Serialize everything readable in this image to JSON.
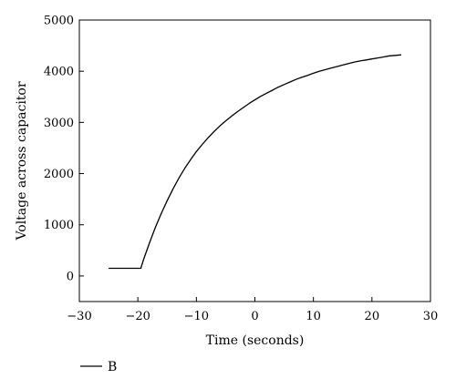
{
  "chart_data": {
    "type": "line",
    "title": "",
    "xlabel": "Time (seconds)",
    "ylabel": "Voltage across capacitor",
    "xlim": [
      -30,
      30
    ],
    "ylim": [
      -500,
      5000
    ],
    "x_ticks": [
      -30,
      -20,
      -10,
      0,
      10,
      20,
      30
    ],
    "x_tick_labels": [
      "−30",
      "−20",
      "−10",
      "0",
      "10",
      "20",
      "30"
    ],
    "y_ticks": [
      0,
      1000,
      2000,
      3000,
      4000,
      5000
    ],
    "y_tick_labels": [
      "0",
      "1000",
      "2000",
      "3000",
      "4000",
      "5000"
    ],
    "grid": false,
    "legend_position": "bottom-left",
    "series": [
      {
        "name": "B",
        "color": "#000000",
        "x": [
          -25,
          -24,
          -23,
          -22,
          -21,
          -20,
          -19.5,
          -19,
          -18,
          -17,
          -16,
          -15,
          -14,
          -13,
          -12,
          -11,
          -10,
          -9,
          -8,
          -7,
          -6,
          -5,
          -4,
          -3,
          -2,
          -1,
          0,
          1,
          2,
          3,
          4,
          5,
          6,
          7,
          8,
          9,
          10,
          11,
          12,
          13,
          14,
          15,
          16,
          17,
          18,
          19,
          20,
          21,
          22,
          23,
          24,
          25
        ],
        "y": [
          150,
          150,
          150,
          150,
          150,
          150,
          150,
          330,
          650,
          950,
          1220,
          1470,
          1700,
          1910,
          2100,
          2270,
          2430,
          2570,
          2700,
          2820,
          2930,
          3030,
          3120,
          3210,
          3290,
          3370,
          3440,
          3510,
          3570,
          3630,
          3690,
          3740,
          3790,
          3840,
          3880,
          3920,
          3960,
          4000,
          4030,
          4060,
          4090,
          4120,
          4150,
          4180,
          4200,
          4220,
          4240,
          4260,
          4280,
          4300,
          4310,
          4320
        ]
      }
    ]
  }
}
